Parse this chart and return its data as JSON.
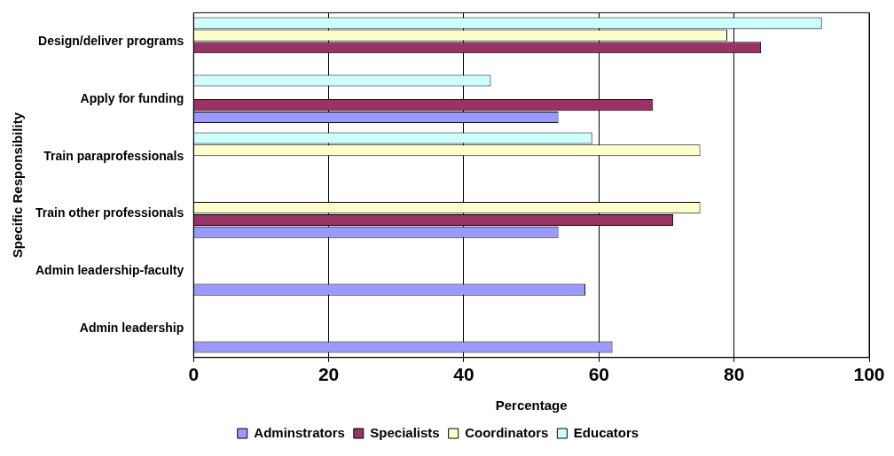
{
  "chart_data": {
    "type": "bar",
    "orientation": "horizontal",
    "xlabel": "Percentage",
    "ylabel": "Specific Responsibility",
    "categories": [
      "Design/deliver programs",
      "Apply for funding",
      "Train paraprofessionals",
      "Train other professionals",
      "Admin leadership-faculty",
      "Admin leadership"
    ],
    "series": [
      {
        "name": "Adminstrators",
        "color": "#9999ff",
        "values": [
          null,
          54,
          null,
          54,
          58,
          62
        ]
      },
      {
        "name": "Specialists",
        "color": "#993366",
        "values": [
          84,
          68,
          null,
          71,
          null,
          null
        ]
      },
      {
        "name": "Coordinators",
        "color": "#ffffcc",
        "values": [
          79,
          null,
          75,
          75,
          null,
          null
        ]
      },
      {
        "name": "Educators",
        "color": "#ccffff",
        "values": [
          93,
          44,
          59,
          null,
          null,
          null
        ]
      }
    ],
    "xlim": [
      0,
      100
    ],
    "xticks": [
      0,
      20,
      40,
      60,
      80,
      100
    ],
    "grid": "x",
    "legend": "bottom"
  }
}
